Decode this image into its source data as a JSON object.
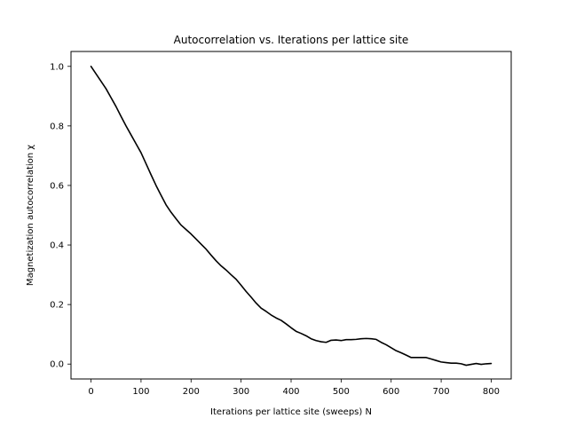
{
  "chart_data": {
    "type": "line",
    "title": "Autocorrelation vs. Iterations per lattice site",
    "xlabel": "Iterations per lattice site (sweeps) N",
    "ylabel": "Magnetization autocorrelation χ",
    "xlim": [
      -40,
      840
    ],
    "ylim": [
      -0.05,
      1.05
    ],
    "xticks": [
      0,
      100,
      200,
      300,
      400,
      500,
      600,
      700,
      800
    ],
    "xtick_labels": [
      "0",
      "100",
      "200",
      "300",
      "400",
      "500",
      "600",
      "700",
      "800"
    ],
    "yticks": [
      0.0,
      0.2,
      0.4,
      0.6,
      0.8,
      1.0
    ],
    "ytick_labels": [
      "0.0",
      "0.2",
      "0.4",
      "0.6",
      "0.8",
      "1.0"
    ],
    "grid": false,
    "legend": "none",
    "line_color": "#000000",
    "series": [
      {
        "x": [
          0,
          10,
          20,
          30,
          40,
          50,
          60,
          70,
          80,
          90,
          100,
          110,
          120,
          130,
          140,
          150,
          160,
          170,
          180,
          190,
          200,
          210,
          220,
          230,
          240,
          250,
          260,
          270,
          280,
          290,
          300,
          310,
          320,
          330,
          340,
          350,
          360,
          370,
          380,
          390,
          400,
          410,
          420,
          430,
          440,
          450,
          460,
          470,
          480,
          490,
          500,
          510,
          520,
          530,
          540,
          550,
          560,
          570,
          580,
          590,
          600,
          610,
          620,
          630,
          640,
          650,
          660,
          670,
          680,
          690,
          700,
          710,
          720,
          730,
          740,
          750,
          760,
          770,
          780,
          790,
          800
        ],
        "y": [
          1.0,
          0.975,
          0.95,
          0.925,
          0.895,
          0.865,
          0.832,
          0.8,
          0.77,
          0.74,
          0.71,
          0.673,
          0.636,
          0.6,
          0.567,
          0.535,
          0.51,
          0.488,
          0.467,
          0.452,
          0.437,
          0.42,
          0.403,
          0.386,
          0.366,
          0.347,
          0.33,
          0.316,
          0.3,
          0.285,
          0.265,
          0.244,
          0.225,
          0.205,
          0.188,
          0.177,
          0.165,
          0.155,
          0.147,
          0.135,
          0.122,
          0.11,
          0.103,
          0.095,
          0.085,
          0.079,
          0.075,
          0.073,
          0.08,
          0.081,
          0.079,
          0.082,
          0.082,
          0.083,
          0.085,
          0.086,
          0.085,
          0.083,
          0.073,
          0.065,
          0.055,
          0.045,
          0.038,
          0.03,
          0.022,
          0.022,
          0.022,
          0.022,
          0.017,
          0.012,
          0.007,
          0.005,
          0.003,
          0.003,
          0.001,
          -0.004,
          -0.001,
          0.002,
          -0.001,
          0.001,
          0.002
        ]
      }
    ]
  }
}
